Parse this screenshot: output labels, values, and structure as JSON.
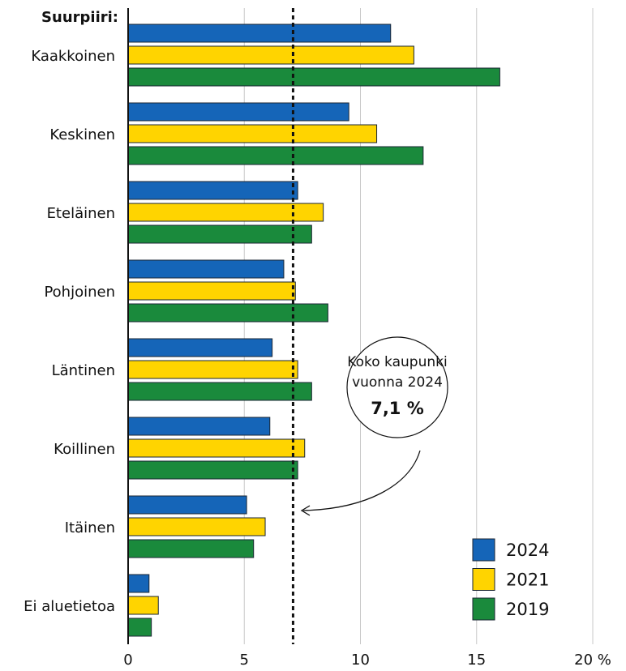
{
  "chart_data": {
    "type": "hbar",
    "y_label": "Suurpiiri:",
    "categories": [
      "Kaakkoinen",
      "Keskinen",
      "Eteläinen",
      "Pohjoinen",
      "Läntinen",
      "Koillinen",
      "Itäinen",
      "Ei aluetietoa"
    ],
    "series": [
      {
        "name": "2024",
        "color": "#1565b8",
        "values": [
          11.3,
          9.5,
          7.3,
          6.7,
          6.2,
          6.1,
          5.1,
          0.9
        ]
      },
      {
        "name": "2021",
        "color": "#ffd400",
        "values": [
          12.3,
          10.7,
          8.4,
          7.2,
          7.3,
          7.6,
          5.9,
          1.3
        ]
      },
      {
        "name": "2019",
        "color": "#1a8a3c",
        "values": [
          16.0,
          12.7,
          7.9,
          8.6,
          7.9,
          7.3,
          5.4,
          1.0
        ]
      }
    ],
    "xlim": [
      0,
      20
    ],
    "xticks": [
      0,
      5,
      10,
      15,
      {
        "value": 20,
        "label": "20 %"
      }
    ],
    "grid": true,
    "legend": "lower right",
    "reference_line": {
      "value": 7.1
    },
    "annotation": [
      "Koko kaupunki",
      "vuonna 2024",
      "7,1 %"
    ]
  }
}
